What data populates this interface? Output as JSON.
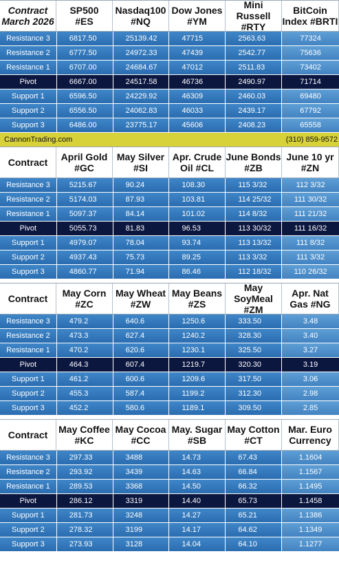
{
  "sections": [
    {
      "headers": [
        "Contract\nMarch 2026",
        "SP500\n#ES",
        "Nasdaq100\n#NQ",
        "Dow Jones\n#YM",
        "Mini Russell\n#RTY",
        "BitCoin\nIndex #BRTI"
      ],
      "rows": [
        {
          "label": "Resistance 3",
          "values": [
            "6817.50",
            "25139.42",
            "47715",
            "2563.63",
            "77324"
          ]
        },
        {
          "label": "Resistance 2",
          "values": [
            "6777.50",
            "24972.33",
            "47439",
            "2542.77",
            "75636"
          ]
        },
        {
          "label": "Resistance 1",
          "values": [
            "6707.00",
            "24684.67",
            "47012",
            "2511.83",
            "73402"
          ]
        },
        {
          "label": "Pivot",
          "values": [
            "6667.00",
            "24517.58",
            "46736",
            "2490.97",
            "71714"
          ]
        },
        {
          "label": "Support 1",
          "values": [
            "6596.50",
            "24229.92",
            "46309",
            "2460.03",
            "69480"
          ]
        },
        {
          "label": "Support 2",
          "values": [
            "6556.50",
            "24062.83",
            "46033",
            "2439.17",
            "67792"
          ]
        },
        {
          "label": "Support 3",
          "values": [
            "6486.00",
            "23775.17",
            "45606",
            "2408.23",
            "65558"
          ]
        }
      ]
    },
    {
      "headers": [
        "Contract",
        "April Gold\n#GC",
        "May Silver\n#SI",
        "Apr. Crude\nOil #CL",
        "June Bonds\n#ZB",
        "June 10 yr\n#ZN"
      ],
      "rows": [
        {
          "label": "Resistance 3",
          "values": [
            "5215.67",
            "90.24",
            "108.30",
            "115  3/32",
            "112  3/32"
          ]
        },
        {
          "label": "Resistance 2",
          "values": [
            "5174.03",
            "87.93",
            "103.81",
            "114 25/32",
            "111 30/32"
          ]
        },
        {
          "label": "Resistance 1",
          "values": [
            "5097.37",
            "84.14",
            "101.02",
            "114  8/32",
            "111 21/32"
          ]
        },
        {
          "label": "Pivot",
          "values": [
            "5055.73",
            "81.83",
            "96.53",
            "113 30/32",
            "111 16/32"
          ]
        },
        {
          "label": "Support 1",
          "values": [
            "4979.07",
            "78.04",
            "93.74",
            "113 13/32",
            "111  8/32"
          ]
        },
        {
          "label": "Support 2",
          "values": [
            "4937.43",
            "75.73",
            "89.25",
            "113  3/32",
            "111  3/32"
          ]
        },
        {
          "label": "Support 3",
          "values": [
            "4860.77",
            "71.94",
            "86.46",
            "112 18/32",
            "110 26/32"
          ]
        }
      ]
    },
    {
      "headers": [
        "Contract",
        "May Corn\n#ZC",
        "May  Wheat\n#ZW",
        "May Beans\n#ZS",
        "May\nSoyMeal\n#ZM",
        "Apr. Nat\nGas #NG"
      ],
      "rows": [
        {
          "label": "Resistance 3",
          "values": [
            "479.2",
            "640.6",
            "1250.6",
            "333.50",
            "3.48"
          ]
        },
        {
          "label": "Resistance 2",
          "values": [
            "473.3",
            "627.4",
            "1240.2",
            "328.30",
            "3.40"
          ]
        },
        {
          "label": "Resistance 1",
          "values": [
            "470.2",
            "620.6",
            "1230.1",
            "325.50",
            "3.27"
          ]
        },
        {
          "label": "Pivot",
          "values": [
            "464.3",
            "607.4",
            "1219.7",
            "320.30",
            "3.19"
          ]
        },
        {
          "label": "Support 1",
          "values": [
            "461.2",
            "600.6",
            "1209.6",
            "317.50",
            "3.06"
          ]
        },
        {
          "label": "Support 2",
          "values": [
            "455.3",
            "587.4",
            "1199.2",
            "312.30",
            "2.98"
          ]
        },
        {
          "label": "Support 3",
          "values": [
            "452.2",
            "580.6",
            "1189.1",
            "309.50",
            "2.85"
          ]
        }
      ]
    },
    {
      "headers": [
        "Contract",
        "May Coffee\n#KC",
        "May Cocoa\n#CC",
        "May. Sugar\n#SB",
        "May Cotton\n#CT",
        "Mar. Euro\nCurrency"
      ],
      "rows": [
        {
          "label": "Resistance 3",
          "values": [
            "297.33",
            "3488",
            "14.73",
            "67.43",
            "1.1604"
          ]
        },
        {
          "label": "Resistance 2",
          "values": [
            "293.92",
            "3439",
            "14.63",
            "66.84",
            "1.1567"
          ]
        },
        {
          "label": "Resistance 1",
          "values": [
            "289.53",
            "3368",
            "14.50",
            "66.32",
            "1.1495"
          ]
        },
        {
          "label": "Pivot",
          "values": [
            "286.12",
            "3319",
            "14.40",
            "65.73",
            "1.1458"
          ]
        },
        {
          "label": "Support 1",
          "values": [
            "281.73",
            "3248",
            "14.27",
            "65.21",
            "1.1386"
          ]
        },
        {
          "label": "Support 2",
          "values": [
            "278.32",
            "3199",
            "14.17",
            "64.62",
            "1.1349"
          ]
        },
        {
          "label": "Support 3",
          "values": [
            "273.93",
            "3128",
            "14.04",
            "64.10",
            "1.1277"
          ]
        }
      ]
    }
  ],
  "banner": {
    "site": "CannonTrading.com",
    "phone": "(310) 859-9572"
  }
}
